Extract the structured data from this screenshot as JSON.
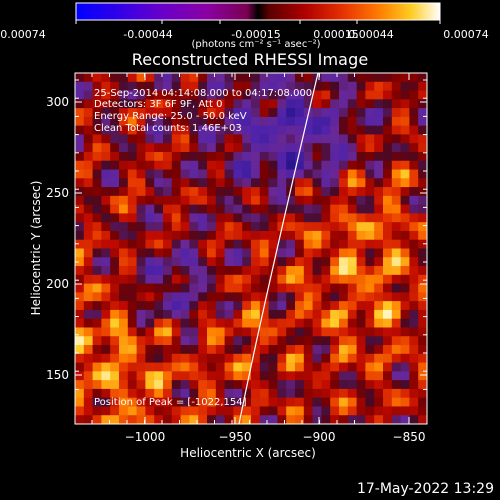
{
  "colorbar": {
    "tick_labels": [
      "-0.00074",
      "-0.00044",
      "-0.00015",
      "0.00015",
      "0.00044",
      "0.00074"
    ],
    "unit_label": "(photons cm⁻² s⁻¹ asec⁻²)"
  },
  "title": "Reconstructed RHESSI Image",
  "info_lines": [
    "25-Sep-2014 04:14:08.000 to 04:17:08.000",
    "Detectors: 3F 6F 9F, Att 0",
    "Energy Range: 25.0 - 50.0 keV",
    "Clean     Total counts: 1.46E+03"
  ],
  "peak_label": "Position of Peak = [-1022,154]",
  "axes": {
    "x_title": "Heliocentric X (arcsec)",
    "y_title": "Heliocentric Y (arcsec)",
    "x_ticks": [
      "−1000",
      "−950",
      "−900",
      "−850"
    ],
    "y_ticks": [
      "300",
      "250",
      "200",
      "150"
    ]
  },
  "timestamp": "17-May-2022 13:29",
  "colors": {
    "background": "#000000",
    "foreground": "#ffffff"
  }
}
